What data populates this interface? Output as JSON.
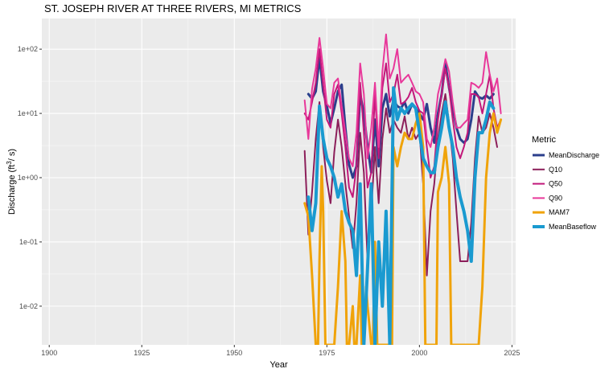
{
  "chart_data": {
    "type": "line",
    "title": "ST. JOSEPH RIVER AT THREE RIVERS, MI  METRICS",
    "xlabel": "Year",
    "ylabel": "Discharge (ft",
    "ylabel_sup": "3",
    "ylabel_end": "/ s)",
    "xlim": [
      1898,
      2026
    ],
    "x_ticks": [
      1900,
      1925,
      1950,
      1975,
      2000,
      2025
    ],
    "x_tick_labels": [
      "1900",
      "1925",
      "1950",
      "1975",
      "2000",
      "2025"
    ],
    "y_scale": "log10",
    "ylim": [
      0.0025,
      300
    ],
    "y_ticks": [
      0.01,
      0.1,
      1,
      10,
      100
    ],
    "y_tick_labels": [
      "1e-02",
      "1e-01",
      "1e+00",
      "1e+01",
      "1e+02"
    ],
    "grid": true,
    "legend_title": "Metric",
    "legend_position": "right",
    "series": [
      {
        "name": "MeanDischarge",
        "color": "#2b3f8c",
        "width": 3,
        "x": [
          1970,
          1971,
          1972,
          1973,
          1974,
          1975,
          1976,
          1977,
          1978,
          1979,
          1980,
          1981,
          1982,
          1983,
          1984,
          1985,
          1986,
          1987,
          1988,
          1989,
          1990,
          1991,
          1992,
          1993,
          1994,
          1995,
          1996,
          1997,
          1998,
          1999,
          2000,
          2001,
          2002,
          2003,
          2004,
          2005,
          2006,
          2007,
          2008,
          2009,
          2010,
          2011,
          2012,
          2013,
          2014,
          2015,
          2016,
          2017,
          2018,
          2019,
          2020
        ],
        "y": [
          20,
          17,
          22,
          75,
          22,
          13,
          7,
          12,
          22,
          28,
          6,
          1.6,
          1.0,
          1.5,
          20,
          10,
          3,
          1.2,
          8,
          1.5,
          12,
          20,
          9,
          16,
          13,
          12,
          15,
          10,
          14,
          12,
          10,
          8,
          14,
          6,
          3.5,
          10,
          20,
          60,
          25,
          12,
          6,
          4,
          3.5,
          4,
          8,
          22,
          18,
          17,
          19,
          17,
          20
        ]
      },
      {
        "name": "Q10",
        "color": "#8c1f5a",
        "width": 2,
        "x": [
          1969,
          1970,
          1971,
          1972,
          1973,
          1974,
          1975,
          1976,
          1977,
          1978,
          1979,
          1980,
          1981,
          1982,
          1983,
          1984,
          1985,
          1986,
          1987,
          1988,
          1989,
          1990,
          1991,
          1992,
          1993,
          1994,
          1995,
          1996,
          1997,
          1998,
          1999,
          2000,
          2001,
          2002,
          2003,
          2004,
          2005,
          2006,
          2007,
          2008,
          2009,
          2010,
          2011,
          2012,
          2013,
          2014,
          2015,
          2016,
          2017,
          2018,
          2019,
          2020,
          2021
        ],
        "y": [
          2.6,
          0.13,
          0.6,
          4,
          15,
          3,
          0.9,
          0.4,
          2.5,
          8,
          3,
          0.8,
          0.25,
          0.08,
          0.4,
          5,
          1.2,
          0.05,
          0.3,
          3,
          0.4,
          4,
          12,
          5,
          8,
          6,
          5,
          9,
          4,
          6,
          4,
          5,
          0.8,
          0.03,
          0.3,
          0.8,
          4,
          10,
          20,
          7,
          2,
          0.3,
          0.05,
          0.05,
          0.05,
          0.2,
          2,
          9,
          5,
          6,
          10,
          6,
          3
        ]
      },
      {
        "name": "Q50",
        "color": "#c2187a",
        "width": 2,
        "x": [
          1969,
          1970,
          1971,
          1972,
          1973,
          1974,
          1975,
          1976,
          1977,
          1978,
          1979,
          1980,
          1981,
          1982,
          1983,
          1984,
          1985,
          1986,
          1987,
          1988,
          1989,
          1990,
          1991,
          1992,
          1993,
          1994,
          1995,
          1996,
          1997,
          1998,
          1999,
          2000,
          2001,
          2002,
          2003,
          2004,
          2005,
          2006,
          2007,
          2008,
          2009,
          2010,
          2011,
          2012,
          2013,
          2014,
          2015,
          2016,
          2017,
          2018,
          2019,
          2020,
          2021,
          2022
        ],
        "y": [
          10,
          8,
          15,
          30,
          100,
          28,
          8,
          6,
          20,
          28,
          10,
          3,
          0.7,
          0.5,
          1.5,
          30,
          5,
          0.7,
          1.2,
          20,
          2,
          25,
          60,
          15,
          20,
          40,
          14,
          15,
          18,
          25,
          15,
          11,
          10,
          3,
          1,
          1.5,
          8,
          20,
          50,
          25,
          8,
          3,
          2,
          3,
          5,
          20,
          20,
          18,
          10,
          20,
          40,
          12,
          6,
          8
        ]
      },
      {
        "name": "Q90",
        "color": "#e8389a",
        "width": 2,
        "x": [
          1969,
          1970,
          1971,
          1972,
          1973,
          1974,
          1975,
          1976,
          1977,
          1978,
          1979,
          1980,
          1981,
          1982,
          1983,
          1984,
          1985,
          1986,
          1987,
          1988,
          1989,
          1990,
          1991,
          1992,
          1993,
          1994,
          1995,
          1996,
          1997,
          1998,
          1999,
          2000,
          2001,
          2002,
          2003,
          2004,
          2005,
          2006,
          2007,
          2008,
          2009,
          2010,
          2011,
          2012,
          2013,
          2014,
          2015,
          2016,
          2017,
          2018,
          2019,
          2020,
          2021,
          2022
        ],
        "y": [
          16,
          4,
          24,
          50,
          150,
          50,
          14,
          12,
          30,
          35,
          13,
          5,
          2,
          1.5,
          5,
          60,
          20,
          2,
          6,
          30,
          3,
          45,
          170,
          35,
          50,
          100,
          30,
          35,
          40,
          30,
          22,
          20,
          15,
          4,
          3,
          6,
          20,
          35,
          70,
          45,
          15,
          6,
          6,
          7,
          8,
          30,
          28,
          25,
          30,
          90,
          40,
          22,
          35,
          10
        ]
      },
      {
        "name": "MAM7",
        "color": "#f0a30a",
        "width": 3,
        "x": [
          1969,
          1970,
          1971,
          1972,
          1972.6,
          1973,
          1973.6,
          1974,
          1974.6,
          1977,
          1978,
          1979,
          1980,
          1980.4,
          1981,
          1982,
          1982.4,
          1983,
          1984,
          1984.4,
          1985,
          1985.6,
          1986,
          1987,
          1987.4,
          1988,
          1988.6,
          1989,
          1989.4,
          1990,
          1990.6,
          1991,
          1992,
          1992.6,
          1993,
          1994,
          1995,
          1996,
          1997,
          1998,
          1999,
          2000,
          2001,
          2001.6,
          2002,
          2002.5,
          2004,
          2004.6,
          2005,
          2006,
          2007,
          2008,
          2008.6,
          2009,
          2009.4,
          2011,
          2011.6,
          2012,
          2013,
          2013.6,
          2015,
          2015.6,
          2016,
          2017,
          2018,
          2019,
          2020,
          2021,
          2022
        ],
        "y": [
          0.4,
          0.25,
          0.03,
          0.0025,
          0.0025,
          0.05,
          1.5,
          0.3,
          0.0025,
          0.0025,
          0.02,
          0.3,
          0.05,
          0.0025,
          0.0025,
          0.01,
          0.0025,
          0.0025,
          0.03,
          0.0025,
          0.0025,
          0.02,
          0.01,
          0.0025,
          0.0025,
          0.1,
          0.0025,
          0.0025,
          0.0025,
          0.0025,
          0.0025,
          0.0025,
          0.0025,
          0.0025,
          3,
          1.5,
          3,
          5,
          4,
          4,
          7,
          10,
          3,
          0.0025,
          0.0025,
          0.0025,
          0.0025,
          0.0025,
          0.6,
          1,
          3,
          0.8,
          0.0025,
          0.0025,
          0.0025,
          0.0025,
          0.0025,
          0.0025,
          0.0025,
          0.0025,
          0.0025,
          0.0025,
          0.0025,
          0.02,
          1,
          5,
          10,
          5,
          8
        ]
      },
      {
        "name": "MeanBaseflow",
        "color": "#1a9ad0",
        "width": 4,
        "x": [
          1970,
          1971,
          1972,
          1973,
          1974,
          1975,
          1976,
          1977,
          1978,
          1979,
          1980,
          1981,
          1982,
          1983,
          1984,
          1985,
          1986,
          1987,
          1988,
          1989,
          1990,
          1991,
          1992,
          1993,
          1994,
          1995,
          1996,
          1997,
          1998,
          1999,
          2000,
          2001,
          2002,
          2003,
          2004,
          2005,
          2006,
          2007,
          2008,
          2009,
          2010,
          2011,
          2012,
          2013,
          2014,
          2015,
          2016,
          2017,
          2018,
          2019,
          2020
        ],
        "y": [
          0.5,
          0.15,
          0.4,
          13,
          4,
          2,
          1.5,
          1,
          0.5,
          0.8,
          0.3,
          0.2,
          0.15,
          0.03,
          0.8,
          0.0025,
          0.04,
          0.8,
          0.0025,
          0.1,
          0.01,
          0.3,
          0.0025,
          25,
          8,
          12,
          10,
          12,
          14,
          12,
          5,
          2,
          1.5,
          1.2,
          1.2,
          3,
          6,
          15,
          6,
          3,
          1,
          0.5,
          0.3,
          0.15,
          0.05,
          1,
          5,
          5,
          8,
          15,
          12
        ]
      }
    ]
  }
}
